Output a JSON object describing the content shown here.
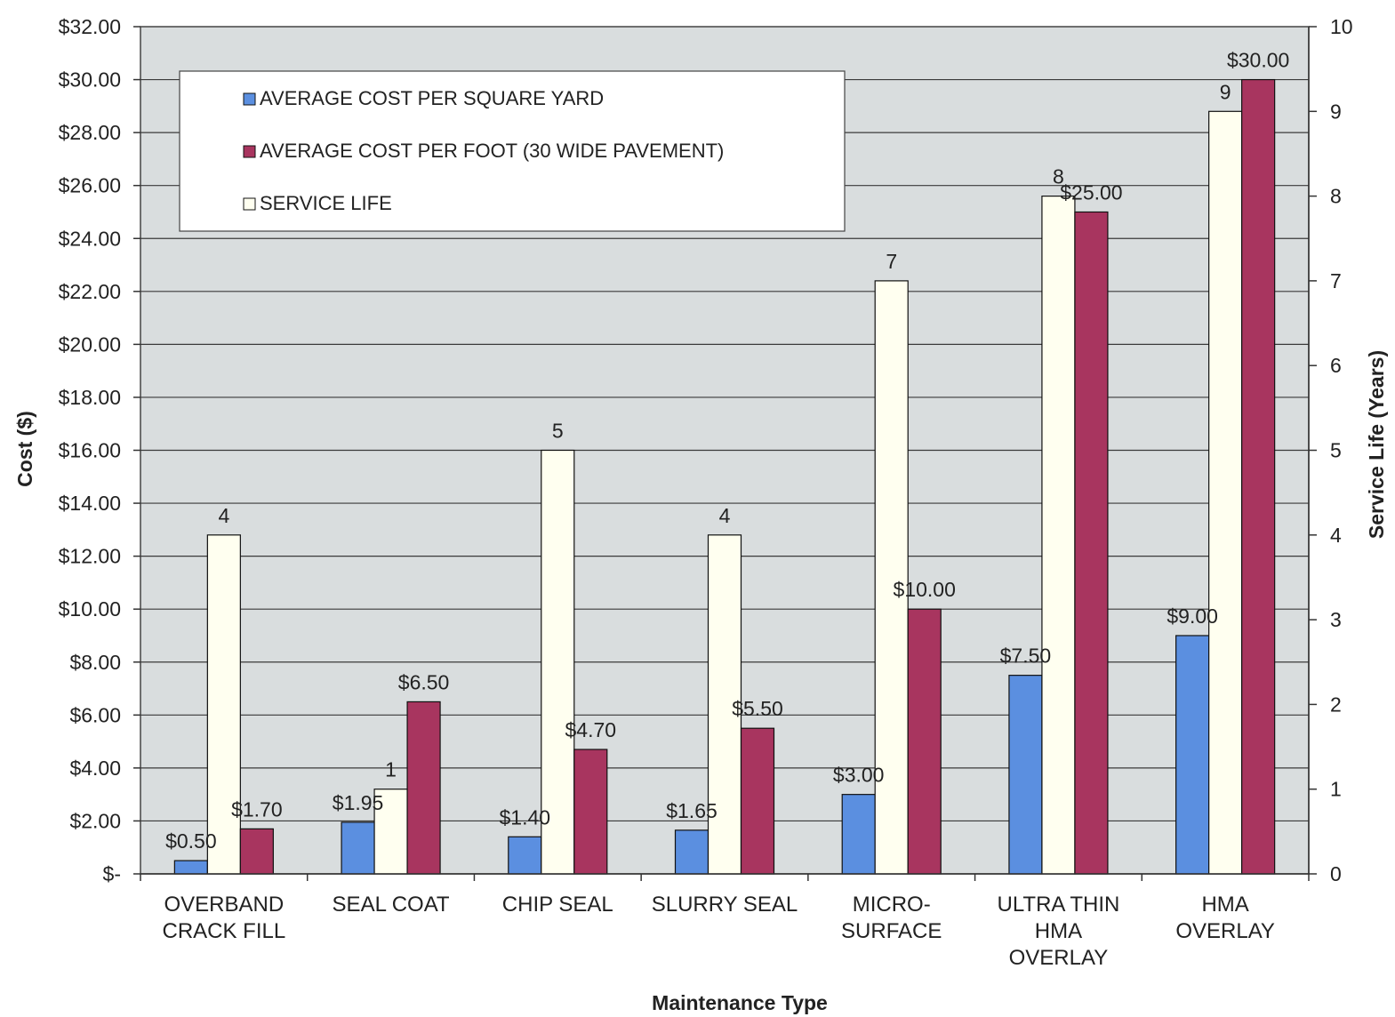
{
  "chart_data": {
    "type": "bar",
    "categories": [
      [
        "OVERBAND",
        "CRACK FILL"
      ],
      [
        "SEAL COAT"
      ],
      [
        "CHIP SEAL"
      ],
      [
        "SLURRY SEAL"
      ],
      [
        "MICRO-",
        "SURFACE"
      ],
      [
        "ULTRA THIN",
        "HMA",
        "OVERLAY"
      ],
      [
        "HMA",
        "OVERLAY"
      ]
    ],
    "series": [
      {
        "name": "AVERAGE COST PER SQUARE YARD",
        "axis": "left",
        "color": "#5b8fe0",
        "values": [
          0.5,
          1.95,
          1.4,
          1.65,
          3.0,
          7.5,
          9.0
        ],
        "labels": [
          "$0.50",
          "$1.95",
          "$1.40",
          "$1.65",
          "$3.00",
          "$7.50",
          "$9.00"
        ]
      },
      {
        "name": "SERVICE LIFE",
        "axis": "right",
        "color": "#fffff0",
        "values": [
          4,
          1,
          5,
          4,
          7,
          8,
          9
        ],
        "labels": [
          "4",
          "1",
          "5",
          "4",
          "7",
          "8",
          "9"
        ]
      },
      {
        "name": "AVERAGE COST PER FOOT (30 WIDE PAVEMENT)",
        "axis": "left",
        "color": "#a8355f",
        "values": [
          1.7,
          6.5,
          4.7,
          5.5,
          10.0,
          25.0,
          30.0
        ],
        "labels": [
          "$1.70",
          "$6.50",
          "$4.70",
          "$5.50",
          "$10.00",
          "$25.00",
          "$30.00"
        ]
      }
    ],
    "legend_order": [
      0,
      2,
      1
    ],
    "legend_placement": "top-left",
    "ylabel": "Cost ($)",
    "y2label": "Service Life (Years)",
    "xlabel": "Maintenance Type",
    "ylim": [
      0,
      32
    ],
    "y2lim": [
      0,
      10
    ],
    "yticks": [
      "$-",
      "$2.00",
      "$4.00",
      "$6.00",
      "$8.00",
      "$10.00",
      "$12.00",
      "$14.00",
      "$16.00",
      "$18.00",
      "$20.00",
      "$22.00",
      "$24.00",
      "$26.00",
      "$28.00",
      "$30.00",
      "$32.00"
    ],
    "y2ticks": [
      "0",
      "1",
      "2",
      "3",
      "4",
      "5",
      "6",
      "7",
      "8",
      "9",
      "10"
    ],
    "grid": true,
    "plot_background": "#d9ddde"
  }
}
